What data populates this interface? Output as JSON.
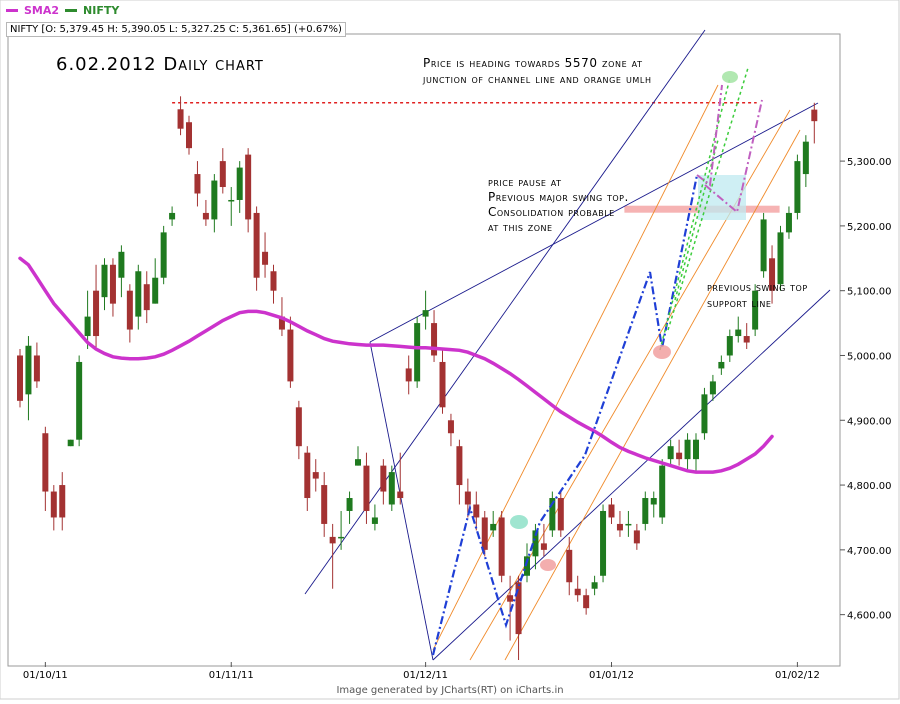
{
  "legend": {
    "sma_label": "SMA2",
    "sma_color": "#cc33cc",
    "price_label": "NIFTY",
    "price_color": "#2e8b2e"
  },
  "ohlc_readout": "NIFTY [O: 5,379.45  H: 5,390.05  L: 5,327.25  C: 5,361.65] (+0.67%)",
  "footer": "Image generated by JCharts(RT) on iCharts.in",
  "chart_data": {
    "type": "candlestick",
    "title": "6.02.2012 Daily chart",
    "ylim": [
      4530,
      5490
    ],
    "y_ticks": [
      "4,600.00",
      "4,700.00",
      "4,800.00",
      "4,900.00",
      "5,000.00",
      "5,100.00",
      "5,200.00",
      "5,300.00"
    ],
    "y_tick_values": [
      4600,
      4700,
      4800,
      4900,
      5000,
      5100,
      5200,
      5300
    ],
    "x_tick_labels": [
      "01/10/11",
      "01/11/11",
      "01/12/11",
      "01/01/12",
      "01/02/12"
    ],
    "x_tick_bars": [
      3,
      25,
      48,
      70,
      92
    ],
    "up_color": "#1f7a1f",
    "down_color": "#a33232",
    "candles": [
      {
        "o": 5000,
        "h": 5010,
        "l": 4920,
        "c": 4930
      },
      {
        "o": 4940,
        "h": 5030,
        "l": 4900,
        "c": 5015
      },
      {
        "o": 5000,
        "h": 5020,
        "l": 4950,
        "c": 4960
      },
      {
        "o": 4880,
        "h": 4890,
        "l": 4760,
        "c": 4790
      },
      {
        "o": 4790,
        "h": 4800,
        "l": 4730,
        "c": 4750
      },
      {
        "o": 4800,
        "h": 4820,
        "l": 4730,
        "c": 4750
      },
      {
        "o": 4860,
        "h": 4870,
        "l": 4860,
        "c": 4870
      },
      {
        "o": 4870,
        "h": 5000,
        "l": 4860,
        "c": 4990
      },
      {
        "o": 5030,
        "h": 5100,
        "l": 5010,
        "c": 5060
      },
      {
        "o": 5100,
        "h": 5140,
        "l": 5010,
        "c": 5030
      },
      {
        "o": 5090,
        "h": 5150,
        "l": 5070,
        "c": 5140
      },
      {
        "o": 5140,
        "h": 5150,
        "l": 5060,
        "c": 5080
      },
      {
        "o": 5120,
        "h": 5170,
        "l": 5090,
        "c": 5160
      },
      {
        "o": 5100,
        "h": 5110,
        "l": 5020,
        "c": 5040
      },
      {
        "o": 5060,
        "h": 5140,
        "l": 5040,
        "c": 5130
      },
      {
        "o": 5110,
        "h": 5130,
        "l": 5050,
        "c": 5070
      },
      {
        "o": 5080,
        "h": 5150,
        "l": 5080,
        "c": 5120
      },
      {
        "o": 5120,
        "h": 5200,
        "l": 5110,
        "c": 5190
      },
      {
        "o": 5210,
        "h": 5230,
        "l": 5200,
        "c": 5220
      },
      {
        "o": 5380,
        "h": 5400,
        "l": 5340,
        "c": 5350
      },
      {
        "o": 5360,
        "h": 5370,
        "l": 5310,
        "c": 5320
      },
      {
        "o": 5280,
        "h": 5300,
        "l": 5230,
        "c": 5250
      },
      {
        "o": 5220,
        "h": 5240,
        "l": 5200,
        "c": 5210
      },
      {
        "o": 5210,
        "h": 5280,
        "l": 5190,
        "c": 5270
      },
      {
        "o": 5300,
        "h": 5320,
        "l": 5250,
        "c": 5260
      },
      {
        "o": 5240,
        "h": 5260,
        "l": 5200,
        "c": 5240
      },
      {
        "o": 5240,
        "h": 5300,
        "l": 5220,
        "c": 5290
      },
      {
        "o": 5310,
        "h": 5320,
        "l": 5190,
        "c": 5210
      },
      {
        "o": 5220,
        "h": 5230,
        "l": 5100,
        "c": 5120
      },
      {
        "o": 5160,
        "h": 5190,
        "l": 5120,
        "c": 5140
      },
      {
        "o": 5130,
        "h": 5140,
        "l": 5080,
        "c": 5100
      },
      {
        "o": 5060,
        "h": 5090,
        "l": 5030,
        "c": 5040
      },
      {
        "o": 5040,
        "h": 5060,
        "l": 4950,
        "c": 4960
      },
      {
        "o": 4920,
        "h": 4930,
        "l": 4840,
        "c": 4860
      },
      {
        "o": 4850,
        "h": 4860,
        "l": 4760,
        "c": 4780
      },
      {
        "o": 4820,
        "h": 4840,
        "l": 4790,
        "c": 4810
      },
      {
        "o": 4800,
        "h": 4820,
        "l": 4720,
        "c": 4740
      },
      {
        "o": 4720,
        "h": 4740,
        "l": 4640,
        "c": 4710
      },
      {
        "o": 4720,
        "h": 4760,
        "l": 4700,
        "c": 4720
      },
      {
        "o": 4760,
        "h": 4790,
        "l": 4740,
        "c": 4780
      },
      {
        "o": 4830,
        "h": 4860,
        "l": 4830,
        "c": 4840
      },
      {
        "o": 4830,
        "h": 4850,
        "l": 4740,
        "c": 4760
      },
      {
        "o": 4740,
        "h": 4770,
        "l": 4730,
        "c": 4750
      },
      {
        "o": 4830,
        "h": 4840,
        "l": 4770,
        "c": 4790
      },
      {
        "o": 4770,
        "h": 4830,
        "l": 4760,
        "c": 4820
      },
      {
        "o": 4790,
        "h": 4850,
        "l": 4770,
        "c": 4780
      },
      {
        "o": 4980,
        "h": 5000,
        "l": 4940,
        "c": 4960
      },
      {
        "o": 4960,
        "h": 5060,
        "l": 4950,
        "c": 5050
      },
      {
        "o": 5060,
        "h": 5100,
        "l": 5040,
        "c": 5070
      },
      {
        "o": 5050,
        "h": 5070,
        "l": 4990,
        "c": 5000
      },
      {
        "o": 4990,
        "h": 5010,
        "l": 4910,
        "c": 4920
      },
      {
        "o": 4900,
        "h": 4910,
        "l": 4860,
        "c": 4880
      },
      {
        "o": 4860,
        "h": 4870,
        "l": 4770,
        "c": 4800
      },
      {
        "o": 4790,
        "h": 4810,
        "l": 4750,
        "c": 4770
      },
      {
        "o": 4770,
        "h": 4790,
        "l": 4730,
        "c": 4750
      },
      {
        "o": 4750,
        "h": 4760,
        "l": 4690,
        "c": 4700
      },
      {
        "o": 4730,
        "h": 4760,
        "l": 4720,
        "c": 4740
      },
      {
        "o": 4750,
        "h": 4760,
        "l": 4650,
        "c": 4660
      },
      {
        "o": 4630,
        "h": 4660,
        "l": 4560,
        "c": 4620
      },
      {
        "o": 4650,
        "h": 4660,
        "l": 4530,
        "c": 4570
      },
      {
        "o": 4660,
        "h": 4710,
        "l": 4650,
        "c": 4690
      },
      {
        "o": 4690,
        "h": 4740,
        "l": 4670,
        "c": 4730
      },
      {
        "o": 4710,
        "h": 4740,
        "l": 4690,
        "c": 4700
      },
      {
        "o": 4730,
        "h": 4790,
        "l": 4720,
        "c": 4780
      },
      {
        "o": 4780,
        "h": 4790,
        "l": 4720,
        "c": 4730
      },
      {
        "o": 4700,
        "h": 4720,
        "l": 4630,
        "c": 4650
      },
      {
        "o": 4640,
        "h": 4660,
        "l": 4620,
        "c": 4630
      },
      {
        "o": 4630,
        "h": 4640,
        "l": 4600,
        "c": 4610
      },
      {
        "o": 4640,
        "h": 4660,
        "l": 4630,
        "c": 4650
      },
      {
        "o": 4660,
        "h": 4770,
        "l": 4650,
        "c": 4760
      },
      {
        "o": 4770,
        "h": 4780,
        "l": 4740,
        "c": 4750
      },
      {
        "o": 4740,
        "h": 4760,
        "l": 4720,
        "c": 4730
      },
      {
        "o": 4740,
        "h": 4760,
        "l": 4720,
        "c": 4740
      },
      {
        "o": 4730,
        "h": 4740,
        "l": 4700,
        "c": 4710
      },
      {
        "o": 4740,
        "h": 4790,
        "l": 4730,
        "c": 4780
      },
      {
        "o": 4770,
        "h": 4790,
        "l": 4750,
        "c": 4780
      },
      {
        "o": 4750,
        "h": 4840,
        "l": 4740,
        "c": 4830
      },
      {
        "o": 4840,
        "h": 4870,
        "l": 4830,
        "c": 4860
      },
      {
        "o": 4850,
        "h": 4870,
        "l": 4830,
        "c": 4840
      },
      {
        "o": 4840,
        "h": 4880,
        "l": 4820,
        "c": 4870
      },
      {
        "o": 4840,
        "h": 4880,
        "l": 4820,
        "c": 4870
      },
      {
        "o": 4880,
        "h": 4950,
        "l": 4870,
        "c": 4940
      },
      {
        "o": 4940,
        "h": 4970,
        "l": 4930,
        "c": 4960
      },
      {
        "o": 4980,
        "h": 5000,
        "l": 4970,
        "c": 4990
      },
      {
        "o": 5000,
        "h": 5040,
        "l": 4990,
        "c": 5030
      },
      {
        "o": 5030,
        "h": 5060,
        "l": 5020,
        "c": 5040
      },
      {
        "o": 5030,
        "h": 5050,
        "l": 5010,
        "c": 5020
      },
      {
        "o": 5040,
        "h": 5110,
        "l": 5030,
        "c": 5100
      },
      {
        "o": 5130,
        "h": 5220,
        "l": 5120,
        "c": 5210
      },
      {
        "o": 5150,
        "h": 5170,
        "l": 5080,
        "c": 5100
      },
      {
        "o": 5110,
        "h": 5200,
        "l": 5100,
        "c": 5190
      },
      {
        "o": 5190,
        "h": 5230,
        "l": 5180,
        "c": 5220
      },
      {
        "o": 5220,
        "h": 5310,
        "l": 5210,
        "c": 5300
      },
      {
        "o": 5280,
        "h": 5340,
        "l": 5260,
        "c": 5330
      },
      {
        "o": 5379.45,
        "h": 5390.05,
        "l": 5327.25,
        "c": 5361.65
      }
    ],
    "sma": [
      5150,
      5140,
      5120,
      5100,
      5080,
      5065,
      5050,
      5035,
      5020,
      5010,
      5003,
      4998,
      4996,
      4995,
      4995,
      4996,
      4998,
      5002,
      5008,
      5015,
      5022,
      5030,
      5038,
      5046,
      5054,
      5060,
      5066,
      5068,
      5068,
      5066,
      5062,
      5058,
      5052,
      5045,
      5038,
      5032,
      5026,
      5022,
      5020,
      5018,
      5017,
      5016,
      5016,
      5016,
      5015,
      5014,
      5013,
      5012,
      5012,
      5011,
      5010,
      5009,
      5008,
      5005,
      5000,
      4995,
      4988,
      4980,
      4972,
      4963,
      4953,
      4943,
      4933,
      4923,
      4913,
      4905,
      4897,
      4890,
      4883,
      4875,
      4866,
      4858,
      4852,
      4847,
      4842,
      4838,
      4834,
      4830,
      4826,
      4822,
      4820,
      4820,
      4820,
      4822,
      4826,
      4832,
      4840,
      4848,
      4860,
      4875
    ],
    "annotations": {
      "title_text": "6.02.2012 Daily chart",
      "note_top": [
        "Price is heading towards 5570 zone at",
        "junction of channel line and orange umlh"
      ],
      "note_middle": [
        "price pause at",
        "Previous major swing top.",
        "Consolidation probable",
        "at this zone"
      ],
      "note_right": [
        "previous swing top",
        "support line"
      ],
      "swing_top_level": 5390,
      "support_zone_level": 5225
    }
  }
}
